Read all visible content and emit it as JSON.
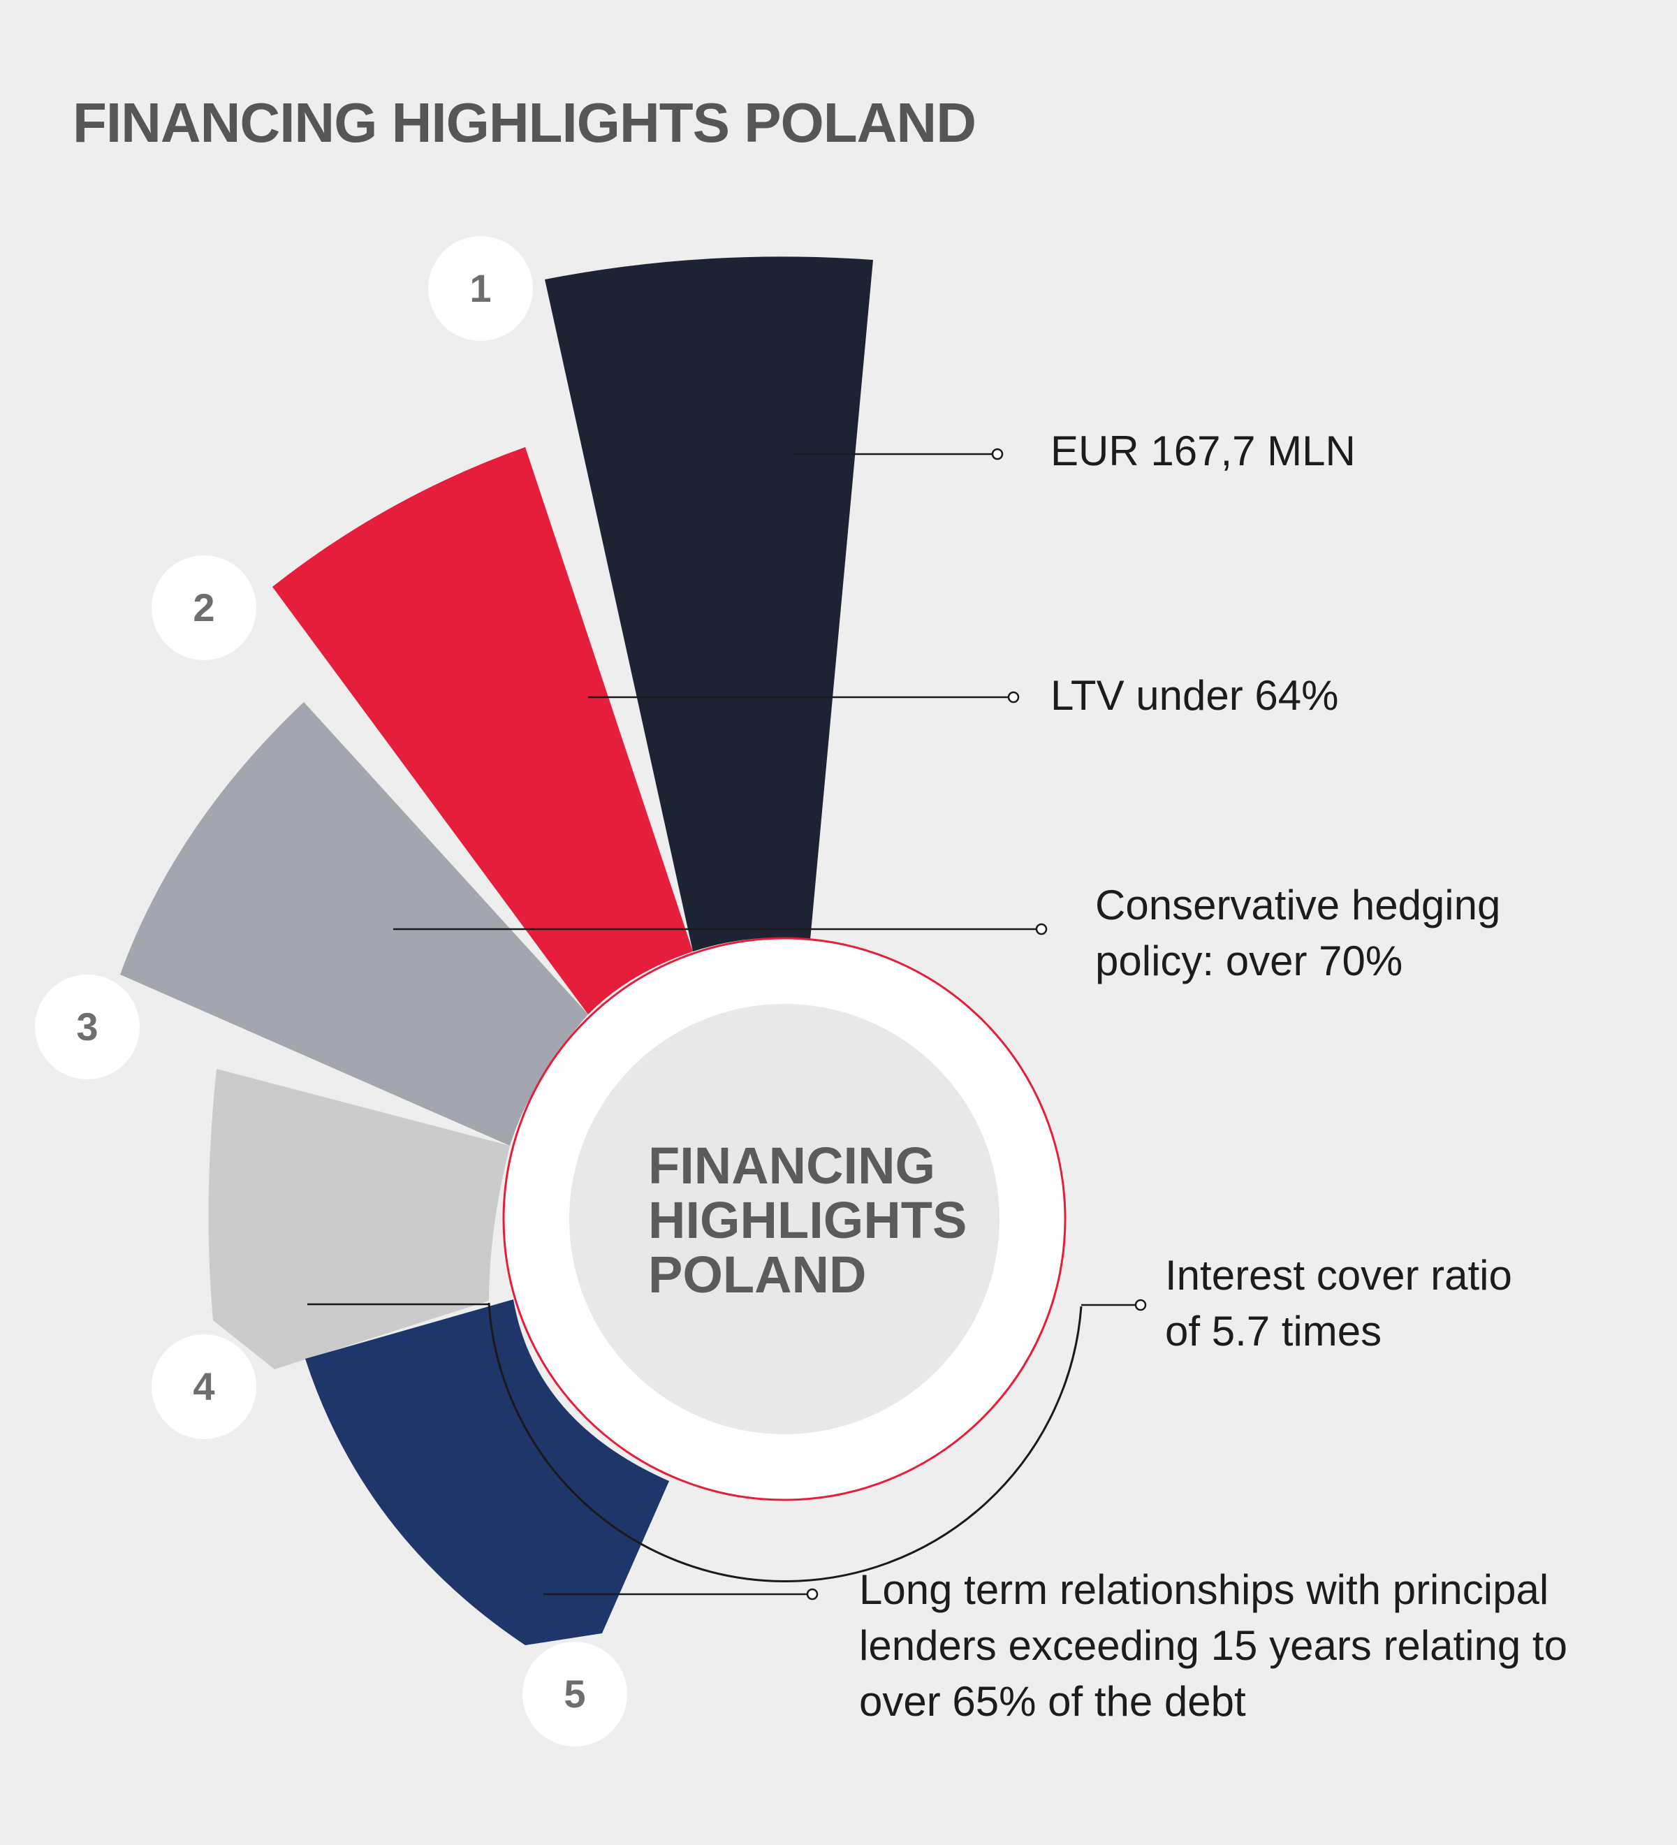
{
  "title": "FINANCING HIGHLIGHTS POLAND",
  "hub": {
    "lines": [
      "FINANCING",
      "HIGHLIGHTS",
      "POLAND"
    ]
  },
  "items": [
    {
      "number": "1",
      "color": "#1e2334",
      "lines": [
        "EUR 167,7 MLN"
      ]
    },
    {
      "number": "2",
      "color": "#e51e3b",
      "lines": [
        "LTV under 64%"
      ]
    },
    {
      "number": "3",
      "color": "#a4a6af",
      "lines": [
        "Conservative hedging",
        "policy: over 70%"
      ]
    },
    {
      "number": "4",
      "color": "#cbcbcb",
      "lines": [
        "Interest cover ratio",
        "of 5.7 times"
      ]
    },
    {
      "number": "5",
      "color": "#1f366b",
      "lines": [
        "Long term relationships with principal",
        "lenders exceeding 15 years relating to",
        "over 65% of the debt"
      ]
    }
  ],
  "colors": {
    "background": "#eeeeee",
    "ring_outline": "#e51e3b",
    "hub_inner": "#e8e8e8"
  }
}
